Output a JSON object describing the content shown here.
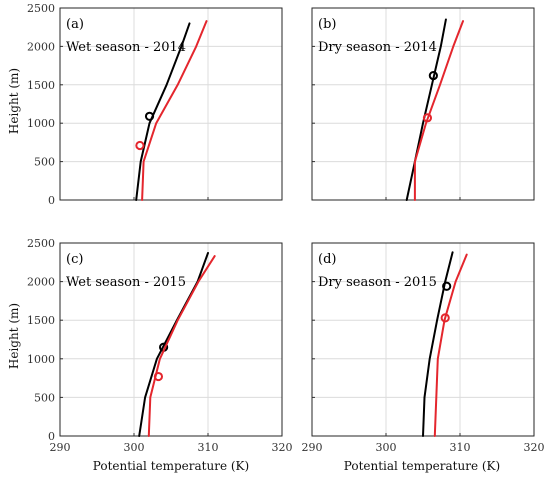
{
  "figure": {
    "ylabel": "Height (m)",
    "xlabel": "Potential temperature (K)"
  },
  "chart_data": [
    {
      "type": "line",
      "panel_label": "(a)",
      "subtitle": "Wet season - 2014",
      "xlim": [
        290,
        320
      ],
      "ylim": [
        0,
        2500
      ],
      "xticks": [
        290,
        300,
        310,
        320
      ],
      "yticks": [
        0,
        500,
        1000,
        1500,
        2000,
        2500
      ],
      "xtick_labels_visible": false,
      "ytick_labels_visible": true,
      "grid": true,
      "series": [
        {
          "color": "#000000",
          "points": [
            [
              300.3,
              0
            ],
            [
              300.9,
              500
            ],
            [
              302.1,
              1000
            ],
            [
              304.4,
              1500
            ],
            [
              306.4,
              2000
            ],
            [
              307.5,
              2300
            ]
          ],
          "marker": [
            302.1,
            1090
          ]
        },
        {
          "color": "#e4262d",
          "points": [
            [
              301.1,
              0
            ],
            [
              301.3,
              500
            ],
            [
              303.0,
              1000
            ],
            [
              305.9,
              1500
            ],
            [
              308.4,
              2000
            ],
            [
              309.8,
              2330
            ]
          ],
          "marker": [
            300.8,
            710
          ]
        }
      ]
    },
    {
      "type": "line",
      "panel_label": "(b)",
      "subtitle": "Dry season - 2014",
      "xlim": [
        290,
        320
      ],
      "ylim": [
        0,
        2500
      ],
      "xticks": [
        290,
        300,
        310,
        320
      ],
      "yticks": [
        0,
        500,
        1000,
        1500,
        2000,
        2500
      ],
      "xtick_labels_visible": false,
      "ytick_labels_visible": false,
      "grid": true,
      "series": [
        {
          "color": "#000000",
          "points": [
            [
              302.8,
              0
            ],
            [
              303.9,
              500
            ],
            [
              305.0,
              1000
            ],
            [
              306.2,
              1500
            ],
            [
              307.4,
              2000
            ],
            [
              308.1,
              2350
            ]
          ],
          "marker": [
            306.4,
            1620
          ]
        },
        {
          "color": "#e4262d",
          "points": [
            [
              303.9,
              0
            ],
            [
              303.9,
              500
            ],
            [
              305.4,
              1000
            ],
            [
              307.3,
              1500
            ],
            [
              309.1,
              2000
            ],
            [
              310.4,
              2330
            ]
          ],
          "marker": [
            305.6,
            1070
          ]
        }
      ]
    },
    {
      "type": "line",
      "panel_label": "(c)",
      "subtitle": "Wet season - 2015",
      "xlim": [
        290,
        320
      ],
      "ylim": [
        0,
        2500
      ],
      "xticks": [
        290,
        300,
        310,
        320
      ],
      "yticks": [
        0,
        500,
        1000,
        1500,
        2000,
        2500
      ],
      "xtick_labels_visible": true,
      "ytick_labels_visible": true,
      "grid": true,
      "series": [
        {
          "color": "#000000",
          "points": [
            [
              300.7,
              0
            ],
            [
              301.5,
              500
            ],
            [
              303.1,
              1000
            ],
            [
              305.8,
              1500
            ],
            [
              308.6,
              2000
            ],
            [
              310.0,
              2370
            ]
          ],
          "marker": [
            304.0,
            1150
          ]
        },
        {
          "color": "#e4262d",
          "points": [
            [
              302.0,
              0
            ],
            [
              302.2,
              500
            ],
            [
              303.5,
              1000
            ],
            [
              305.9,
              1500
            ],
            [
              308.7,
              2000
            ],
            [
              310.9,
              2330
            ]
          ],
          "marker": [
            303.3,
            770
          ]
        }
      ]
    },
    {
      "type": "line",
      "panel_label": "(d)",
      "subtitle": "Dry season - 2015",
      "xlim": [
        290,
        320
      ],
      "ylim": [
        0,
        2500
      ],
      "xticks": [
        290,
        300,
        310,
        320
      ],
      "yticks": [
        0,
        500,
        1000,
        1500,
        2000,
        2500
      ],
      "xtick_labels_visible": true,
      "ytick_labels_visible": false,
      "grid": true,
      "series": [
        {
          "color": "#000000",
          "points": [
            [
              305.0,
              0
            ],
            [
              305.2,
              500
            ],
            [
              305.9,
              1000
            ],
            [
              306.9,
              1500
            ],
            [
              308.0,
              2000
            ],
            [
              309.0,
              2380
            ]
          ],
          "marker": [
            308.2,
            1940
          ]
        },
        {
          "color": "#e4262d",
          "points": [
            [
              306.6,
              0
            ],
            [
              306.8,
              500
            ],
            [
              307.0,
              1000
            ],
            [
              307.9,
              1500
            ],
            [
              309.4,
              2000
            ],
            [
              310.9,
              2350
            ]
          ],
          "marker": [
            308.0,
            1530
          ]
        }
      ]
    }
  ]
}
